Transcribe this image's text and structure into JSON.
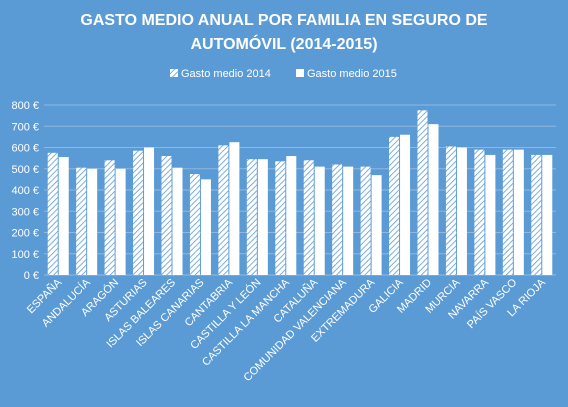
{
  "chart_data": {
    "type": "bar",
    "title_lines": [
      "GASTO MEDIO ANUAL POR FAMILIA EN SEGURO DE",
      "AUTOMÓVIL (2014-2015)"
    ],
    "categories": [
      "ESPAÑA",
      "ANDALUCÍA",
      "ARAGÓN",
      "ASTURIAS",
      "ISLAS BALEARES",
      "ISLAS CANARIAS",
      "CANTABRIA",
      "CASTILLA Y LEÓN",
      "CASTILLA LA MANCHA",
      "CATALUÑA",
      "COMUNIDAD VALENCIANA",
      "EXTREMADURA",
      "GALICIA",
      "MADRID",
      "MURCIA",
      "NAVARRA",
      "PAÍS VASCO",
      "LA RIOJA"
    ],
    "series": [
      {
        "name": "Gasto medio 2014",
        "values": [
          575,
          505,
          540,
          585,
          560,
          475,
          610,
          545,
          535,
          540,
          520,
          510,
          650,
          775,
          605,
          590,
          590,
          565
        ]
      },
      {
        "name": "Gasto medio 2015",
        "values": [
          555,
          500,
          500,
          600,
          505,
          450,
          625,
          545,
          560,
          510,
          510,
          470,
          660,
          710,
          600,
          565,
          590,
          565
        ]
      }
    ],
    "y_ticks": [
      "0 €",
      "100 €",
      "200 €",
      "300 €",
      "400 €",
      "500 €",
      "600 €",
      "700 €",
      "800 €"
    ],
    "ylim": [
      0,
      800
    ],
    "grid": true,
    "legend_position": "top",
    "colors": {
      "background": "#5b9bd5",
      "bar": "#ffffff",
      "grid": "#8fb8e0"
    }
  }
}
